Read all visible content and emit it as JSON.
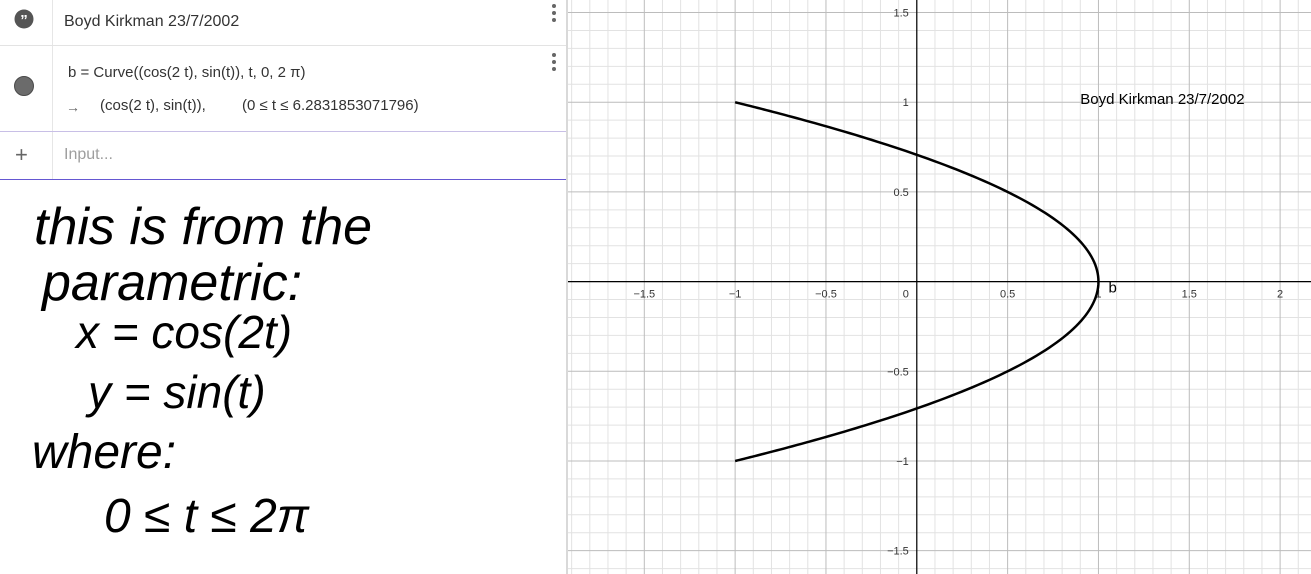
{
  "algebra": {
    "text_item": {
      "icon": "quote-icon",
      "text": "Boyd Kirkman 23/7/2002"
    },
    "curve_item": {
      "icon": "object-marble-icon",
      "definition": "b = Curve((cos(2 t), sin(t)), t, 0, 2 π)",
      "output_arrow": "→",
      "output_value": "(cos(2 t), sin(t)),",
      "output_range": "(0 ≤ t ≤ 6.2831853071796)"
    },
    "input_bar": {
      "icon": "plus-icon",
      "placeholder": "Input..."
    }
  },
  "handwritten_note": {
    "lines": [
      "this is from the",
      "parametric:",
      "x = cos(2t)",
      "y = sin(t)",
      "where:",
      "0 ≤ t ≤ 2π"
    ]
  },
  "graphics": {
    "text_label": "Boyd Kirkman 23/7/2002",
    "curve_label": "b",
    "curve_color": "#000000",
    "grid_color": "#e2e2e2",
    "major_grid_color": "#bcbcbc",
    "axes_color": "#000000",
    "x_ticks": [
      "−1.5",
      "−1",
      "−0.5",
      "0",
      "0.5",
      "1",
      "1.5",
      "2"
    ],
    "y_ticks": [
      "1.5",
      "1",
      "0.5",
      "−0.5",
      "−1",
      "−1.5"
    ]
  },
  "chart_data": {
    "type": "line",
    "title": "",
    "xlabel": "",
    "ylabel": "",
    "xlim": [
      -1.92,
      2.17
    ],
    "ylim": [
      -1.63,
      1.57
    ],
    "grid": true,
    "series": [
      {
        "name": "b",
        "parametric": "x = cos(2t), y = sin(t)",
        "t_range": [
          0,
          6.2831853071796
        ],
        "x": [
          1,
          0.866,
          0.5,
          0,
          -0.5,
          -0.866,
          -1,
          -0.866,
          -0.5,
          0,
          0.5,
          0.866,
          1
        ],
        "y": [
          0,
          0.259,
          0.5,
          0.707,
          0.866,
          0.966,
          1,
          0.966,
          0.866,
          0.707,
          0.5,
          0.259,
          0
        ]
      }
    ]
  }
}
